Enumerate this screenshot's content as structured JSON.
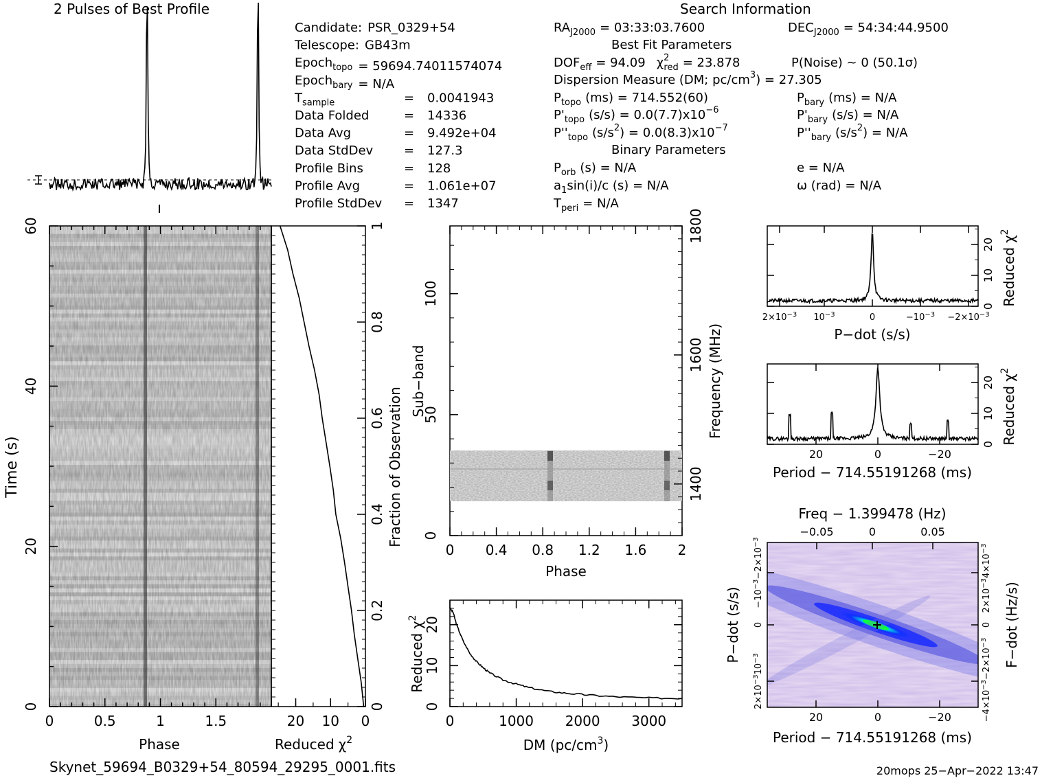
{
  "title_profile": "2 Pulses of Best Profile",
  "title_search": "Search Information",
  "search_info": {
    "col1": [
      {
        "label": "Candidate:",
        "value": "PSR_0329+54"
      },
      {
        "label": "Telescope:",
        "value": "GB43m"
      },
      {
        "label": "Epoch",
        "sub": "topo",
        "value": "= 59694.74011574074"
      },
      {
        "label": "Epoch",
        "sub": "bary",
        "value": "= N/A"
      },
      {
        "label": "T",
        "sub": "sample",
        "eq": "=",
        "value": "0.0041943"
      },
      {
        "label": "Data Folded",
        "eq": "=",
        "value": "14336"
      },
      {
        "label": "Data Avg",
        "eq": "=",
        "value": "9.492e+04"
      },
      {
        "label": "Data StdDev",
        "eq": "=",
        "value": "127.3"
      },
      {
        "label": "Profile Bins",
        "eq": "=",
        "value": "128"
      },
      {
        "label": "Profile Avg",
        "eq": "=",
        "value": "1.061e+07"
      },
      {
        "label": "Profile StdDev",
        "eq": "=",
        "value": "1347"
      }
    ],
    "ra": "RA",
    "ra_sub": "J2000",
    "ra_value": "= 03:33:03.7600",
    "dec": "DEC",
    "dec_sub": "J2000",
    "dec_value": "= 54:34:44.9500",
    "best_fit_header": "Best Fit Parameters",
    "dof": "DOF",
    "dof_sub": "eff",
    "dof_value": "= 94.09",
    "chi": "χ",
    "chi_sup": "2",
    "chi_sub": "red",
    "chi_value": "= 23.878",
    "pnoise": "P(Noise) ~ 0   (50.1σ)",
    "dm_line": "Dispersion Measure (DM; pc/cm",
    "dm_sup": "3",
    "dm_value": ") = 27.305",
    "ptopo": "P",
    "ptopo_sub": "topo",
    "ptopo_value": "(ms) =  714.552(60)",
    "pbary_sub": "bary",
    "pbary_value": "(ms) = N/A",
    "pdtopo": "P'",
    "pdtopo_value": "(s/s) = 0.0(7.7)x10",
    "pdtopo_exp": "−6",
    "pdbary_value": "(s/s) = N/A",
    "pddtopo": "P''",
    "pddtopo_value": "(s/s",
    "pddtopo_value2": ") = 0.0(8.3)x10",
    "pddtopo_exp": "−7",
    "pddbary_value": "(s/s",
    "pddbary_value2": ") = N/A",
    "binary_header": "Binary Parameters",
    "porb": "P",
    "porb_sub": "orb",
    "porb_value": "(s) = N/A",
    "a1": "a",
    "a1_sub": "1",
    "a1_value": "sin(i)/c (s) = N/A",
    "tperi": "T",
    "tperi_sub": "peri",
    "tperi_value": "= N/A",
    "e_value": "e = N/A",
    "omega_value": "ω (rad) = N/A"
  },
  "footer_left": "Skynet_59694_B0329+54_80594_29295_0001.fits",
  "footer_right": "20mops 25−Apr−2022 13:47",
  "chart_data": [
    {
      "type": "line",
      "name": "profile",
      "x_range": [
        0,
        2
      ],
      "peaks_at": [
        0.88,
        1.88
      ]
    },
    {
      "type": "heatmap",
      "name": "time-phase",
      "xlabel": "Phase",
      "ylabel": "Time (s)",
      "x_ticks": [
        "0",
        "0.5",
        "1",
        "1.5"
      ],
      "y_ticks": [
        "0",
        "20",
        "40",
        "60"
      ],
      "xlim": [
        0,
        2
      ],
      "ylim": [
        0,
        60
      ]
    },
    {
      "type": "line",
      "name": "reduced-chi2-vs-time",
      "xlabel": "Reduced",
      "xlabel_sup": "2",
      "xlabel_sym": "χ",
      "ylabel_right": "Fraction of Observation",
      "x_ticks": [
        "20",
        "10",
        "0"
      ],
      "y_ticks": [
        "0",
        "0.2",
        "0.4",
        "0.6",
        "0.8",
        "1"
      ],
      "points": [
        [
          0.5,
          0
        ],
        [
          1.2,
          0.05
        ],
        [
          2.2,
          0.1
        ],
        [
          3.2,
          0.15
        ],
        [
          4.0,
          0.2
        ],
        [
          5.0,
          0.25
        ],
        [
          6.0,
          0.3
        ],
        [
          7.1,
          0.35
        ],
        [
          8.5,
          0.4
        ],
        [
          9.2,
          0.45
        ],
        [
          10.2,
          0.5
        ],
        [
          11.3,
          0.55
        ],
        [
          12.4,
          0.6
        ],
        [
          13.3,
          0.65
        ],
        [
          14.6,
          0.7
        ],
        [
          16.2,
          0.75
        ],
        [
          17.6,
          0.8
        ],
        [
          19.0,
          0.85
        ],
        [
          20.8,
          0.9
        ],
        [
          22.3,
          0.95
        ],
        [
          24.5,
          1.0
        ]
      ]
    },
    {
      "type": "heatmap",
      "name": "subband-phase",
      "xlabel": "Phase",
      "ylabel": "Sub−band",
      "ylabel_right": "Frequency (MHz)",
      "x_ticks": [
        "0",
        "0.4",
        "0.8",
        "1.2",
        "1.6",
        "2"
      ],
      "y_ticks": [
        "0",
        "50",
        "100"
      ],
      "y2_ticks": [
        "1400",
        "1600",
        "1800"
      ]
    },
    {
      "type": "line",
      "name": "dm-curve",
      "xlabel": "DM (pc/cm",
      "xlabel_sup": "3",
      "xlabel_end": ")",
      "ylabel": "Reduced",
      "x_ticks": [
        "0",
        "1000",
        "2000",
        "3000"
      ],
      "y_ticks": [
        "0",
        "10",
        "20"
      ],
      "xlim": [
        0,
        3500
      ],
      "ylim": [
        0,
        26
      ],
      "points": [
        [
          0,
          24
        ],
        [
          50,
          23
        ],
        [
          100,
          20
        ],
        [
          200,
          16
        ],
        [
          300,
          13
        ],
        [
          400,
          11
        ],
        [
          500,
          9.5
        ],
        [
          600,
          8.2
        ],
        [
          800,
          6.5
        ],
        [
          1000,
          5.5
        ],
        [
          1200,
          4.6
        ],
        [
          1500,
          3.7
        ],
        [
          1800,
          3.2
        ],
        [
          2100,
          2.8
        ],
        [
          2500,
          2.4
        ],
        [
          3000,
          2.1
        ],
        [
          3500,
          2.0
        ]
      ]
    },
    {
      "type": "line",
      "name": "pdot-curve",
      "xlabel": "P−dot (s/s)",
      "ylabel_right": "Reduced",
      "x_ticks": [
        "2×10",
        "10",
        "0",
        "−10",
        "−2×10"
      ],
      "x_tick_exp": "−3",
      "y_ticks": [
        "0",
        "10",
        "20"
      ]
    },
    {
      "type": "line",
      "name": "period-curve",
      "xlabel": "Period − 714.55191268 (ms)",
      "ylabel_right": "Reduced",
      "x_ticks": [
        "20",
        "0",
        "−20"
      ],
      "y_ticks": [
        "0",
        "10",
        "20"
      ]
    },
    {
      "type": "heatmap",
      "name": "pdot-period",
      "title": "Freq − 1.399478 (Hz)",
      "xlabel": "Period − 714.55191268 (ms)",
      "ylabel": "P−dot (s/s)",
      "ylabel_right": "F−dot (Hz/s)",
      "x_ticks": [
        "20",
        "0",
        "−20"
      ],
      "top_ticks": [
        "−0.05",
        "0",
        "0.05"
      ]
    }
  ]
}
